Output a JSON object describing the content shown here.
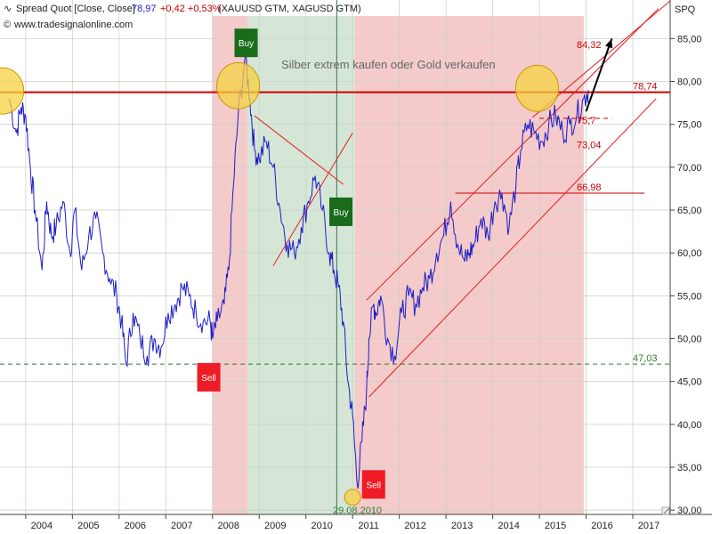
{
  "header": {
    "title_prefix": "Spread Quot [Close, Close]",
    "last": "78,97",
    "change": "+0,42 +0,53%",
    "symbols": "(XAUUSD GTM, XAGUSD GTM)",
    "website": "www.tradesignalonline.com",
    "corner_label": "SPQ"
  },
  "annotations": {
    "note": "Silber extrem kaufen oder Gold verkaufen",
    "date_label": "29.08.2010",
    "buy_label": "Buy",
    "sell_label": "Sell",
    "level_labels": [
      "84,32",
      "78,74",
      "75,7",
      "73,04",
      "66,98",
      "47,03"
    ]
  },
  "chart_data": {
    "type": "line",
    "title": "Spread Quot [Close, Close]",
    "series": [
      {
        "name": "Spread Quot",
        "color": "#1c1cc8",
        "x": [
          2003.65,
          2003.8,
          2003.9,
          2004.0,
          2004.1,
          2004.2,
          2004.35,
          2004.45,
          2004.55,
          2004.65,
          2004.8,
          2004.95,
          2005.05,
          2005.2,
          2005.35,
          2005.5,
          2005.65,
          2005.8,
          2005.95,
          2006.05,
          2006.15,
          2006.3,
          2006.45,
          2006.6,
          2006.75,
          2006.9,
          2007.05,
          2007.2,
          2007.35,
          2007.5,
          2007.65,
          2007.8,
          2007.95,
          2008.0,
          2008.1,
          2008.25,
          2008.35,
          2008.45,
          2008.55,
          2008.7,
          2008.8,
          2008.9,
          2009.0,
          2009.15,
          2009.3,
          2009.45,
          2009.6,
          2009.75,
          2009.9,
          2010.05,
          2010.2,
          2010.35,
          2010.5,
          2010.6,
          2010.7,
          2010.8,
          2010.9,
          2011.0,
          2011.1,
          2011.2,
          2011.3,
          2011.35,
          2011.45,
          2011.5,
          2011.6,
          2011.75,
          2011.9,
          2012.05,
          2012.2,
          2012.35,
          2012.5,
          2012.65,
          2012.8,
          2012.95,
          2013.1,
          2013.25,
          2013.4,
          2013.5,
          2013.6,
          2013.75,
          2013.9,
          2014.05,
          2014.2,
          2014.35,
          2014.5,
          2014.6,
          2014.75,
          2014.9,
          2015.05,
          2015.2,
          2015.35,
          2015.5,
          2015.65,
          2015.8,
          2015.95,
          2016.05
        ],
        "y": [
          78,
          74,
          77,
          76,
          70,
          65,
          58,
          66,
          62,
          63,
          66,
          60,
          65,
          58,
          62,
          64,
          60,
          57,
          55,
          52,
          47,
          53,
          50,
          48,
          50,
          49,
          53,
          54,
          56,
          55,
          53,
          52,
          52,
          50,
          52,
          54,
          58,
          68,
          76,
          83,
          78,
          72,
          71,
          73,
          70,
          65,
          61,
          60,
          63,
          66,
          69,
          65,
          60,
          58,
          56,
          52,
          45,
          41,
          33,
          38,
          44,
          50,
          54,
          53,
          55,
          50,
          48,
          53,
          55,
          54,
          56,
          57,
          60,
          62,
          66,
          61,
          59,
          60,
          61,
          64,
          62,
          66,
          67,
          63,
          68,
          72,
          75,
          74,
          73,
          75,
          76,
          74,
          75,
          76,
          78,
          79
        ]
      }
    ],
    "xlabel": "",
    "ylabel": "",
    "xlim": [
      2003.45,
      2017.8
    ],
    "ylim": [
      29.5,
      89.5
    ],
    "x_ticks": [
      "2004",
      "2005",
      "2006",
      "2007",
      "2008",
      "2009",
      "2010",
      "2011",
      "2012",
      "2013",
      "2014",
      "2015",
      "2016",
      "2017"
    ],
    "y_ticks": [
      "30,00",
      "35,00",
      "40,00",
      "45,00",
      "50,00",
      "55,00",
      "60,00",
      "65,00",
      "70,00",
      "75,00",
      "80,00",
      "85,00"
    ],
    "y_tick_values": [
      30,
      35,
      40,
      45,
      50,
      55,
      60,
      65,
      70,
      75,
      80,
      85
    ],
    "horizontal_levels": [
      {
        "value": 78.74,
        "color": "#cc0000",
        "style": "solid"
      },
      {
        "value": 66.98,
        "color": "#cc0000",
        "style": "solid",
        "from": 2013.2,
        "to": 2017.25
      },
      {
        "value": 75.7,
        "color": "#cc0000",
        "style": "dashed",
        "from": 2015.0,
        "to": 2016.55
      },
      {
        "value": 47.03,
        "color": "#2e7d32",
        "style": "dashed"
      }
    ],
    "shaded_zones": [
      {
        "from": 2008.0,
        "to": 2008.75,
        "color": "#f4caca"
      },
      {
        "from": 2008.75,
        "to": 2011.05,
        "color": "#d6e6d6"
      },
      {
        "from": 2011.05,
        "to": 2015.95,
        "color": "#f4caca"
      }
    ],
    "signals": [
      {
        "label": "Buy",
        "x": 2008.72,
        "y": 84.5,
        "kind": "buy"
      },
      {
        "label": "Buy",
        "x": 2010.75,
        "y": 64.8,
        "kind": "buy"
      },
      {
        "label": "Sell",
        "x": 2007.92,
        "y": 45.5,
        "kind": "sell"
      },
      {
        "label": "Sell",
        "x": 2011.45,
        "y": 33.0,
        "kind": "sell"
      }
    ],
    "highlight_circles": [
      {
        "x": 2003.5,
        "y": 78.9
      },
      {
        "x": 2008.55,
        "y": 79.5
      },
      {
        "x": 2014.95,
        "y": 79.2
      },
      {
        "x": 2011.0,
        "y": 31.5
      }
    ],
    "trend_lines": [
      {
        "from": [
          2008.9,
          76.0
        ],
        "to": [
          2010.8,
          68.0
        ]
      },
      {
        "from": [
          2009.3,
          58.5
        ],
        "to": [
          2011.0,
          74.0
        ]
      },
      {
        "from": [
          2011.3,
          54.5
        ],
        "to": [
          2017.55,
          88.5
        ]
      },
      {
        "from": [
          2011.35,
          43.2
        ],
        "to": [
          2017.5,
          78.0
        ]
      },
      {
        "from": [
          2014.85,
          75.8
        ],
        "to": [
          2017.8,
          89.4
        ]
      }
    ],
    "arrow": {
      "from": [
        2016.0,
        76.5
      ],
      "to": [
        2016.55,
        85.0
      ]
    },
    "grid": true,
    "legend": "top-left"
  }
}
